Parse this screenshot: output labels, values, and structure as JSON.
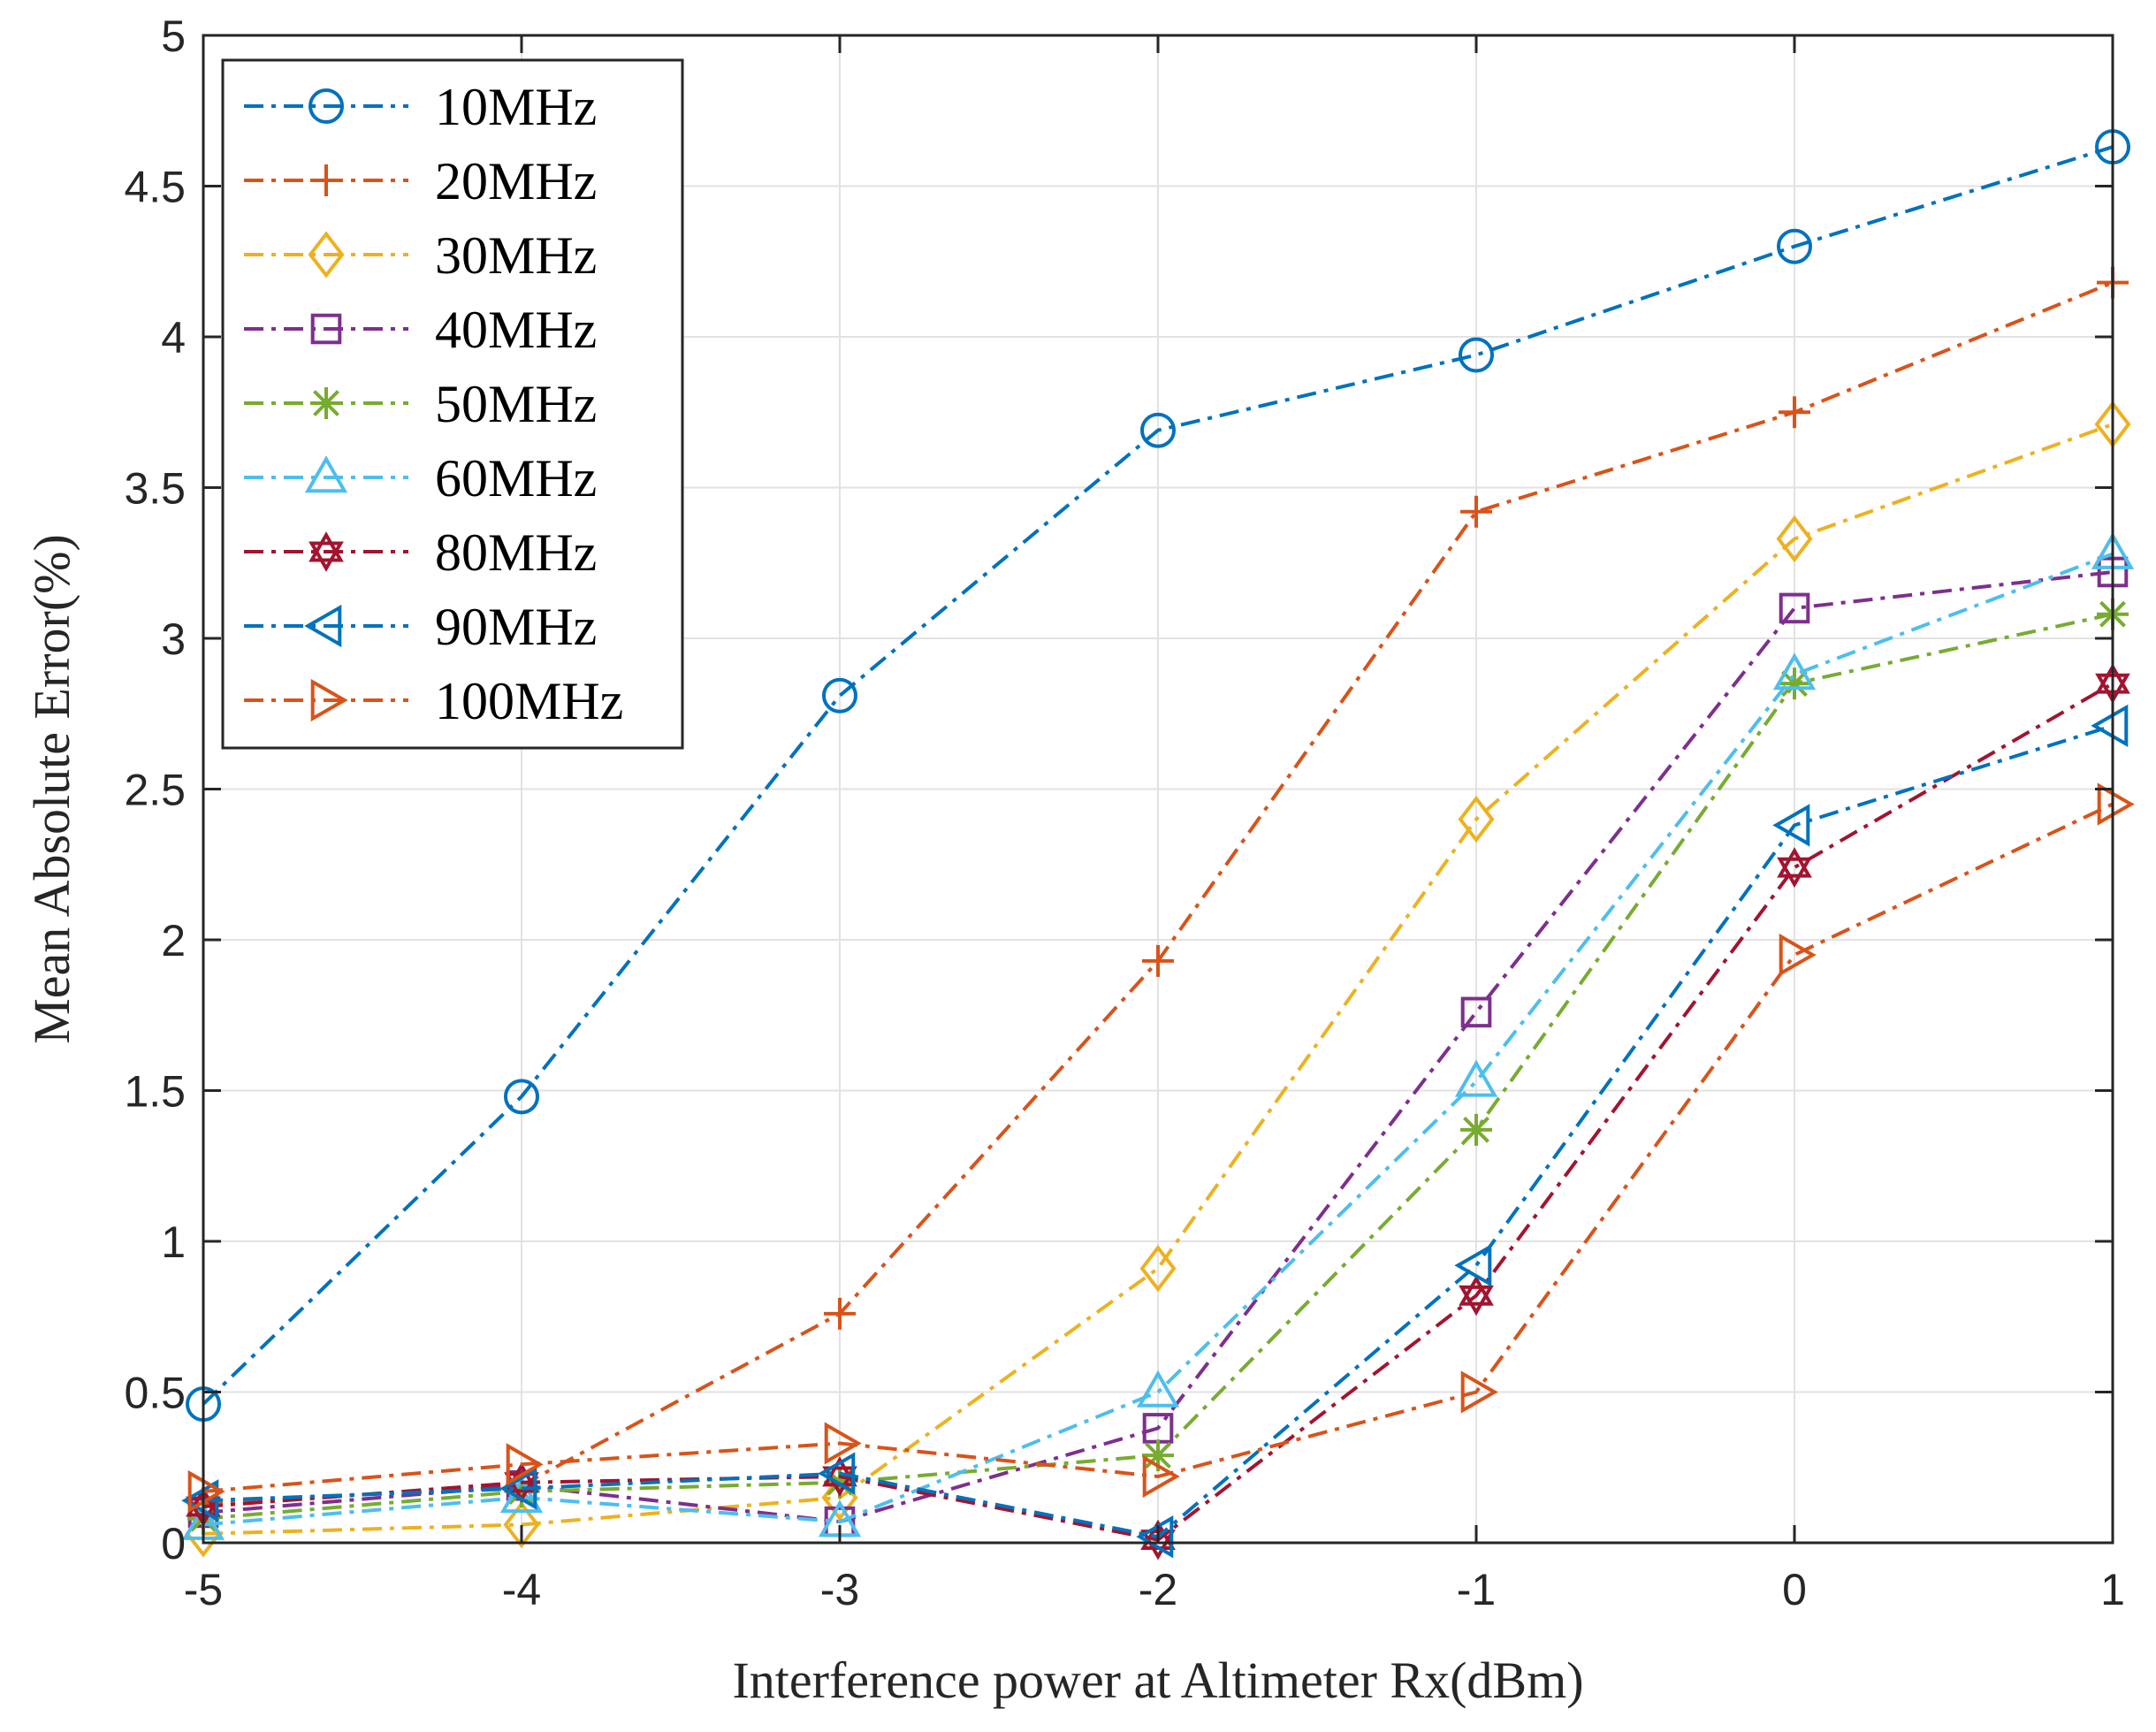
{
  "chart_data": {
    "type": "line",
    "title": "",
    "xlabel": "Interference power at Altimeter Rx(dBm)",
    "ylabel": "Mean Absolute Error(%)",
    "x": [
      -5,
      -4,
      -3,
      -2,
      -1,
      0,
      1
    ],
    "xlim": [
      -5,
      1
    ],
    "ylim": [
      0,
      5
    ],
    "xticks": [
      "-5",
      "-4",
      "-3",
      "-2",
      "-1",
      "0",
      "1"
    ],
    "yticks": [
      "0",
      "0.5",
      "1",
      "1.5",
      "2",
      "2.5",
      "3",
      "3.5",
      "4",
      "4.5",
      "5"
    ],
    "grid": true,
    "legend_position": "top-left",
    "series": [
      {
        "name": "10MHz",
        "color": "#0072BD",
        "marker": "circle",
        "values": [
          0.46,
          1.48,
          2.81,
          3.69,
          3.94,
          4.3,
          4.63
        ]
      },
      {
        "name": "20MHz",
        "color": "#D95319",
        "marker": "plus",
        "values": [
          0.13,
          0.19,
          0.76,
          1.93,
          3.42,
          3.75,
          4.18
        ]
      },
      {
        "name": "30MHz",
        "color": "#EDB120",
        "marker": "diamond",
        "values": [
          0.03,
          0.06,
          0.15,
          0.91,
          2.4,
          3.33,
          3.71
        ]
      },
      {
        "name": "40MHz",
        "color": "#7E2F8E",
        "marker": "square",
        "values": [
          0.1,
          0.19,
          0.07,
          0.38,
          1.76,
          3.1,
          3.22
        ]
      },
      {
        "name": "50MHz",
        "color": "#77AC30",
        "marker": "asterisk",
        "values": [
          0.08,
          0.17,
          0.2,
          0.29,
          1.37,
          2.85,
          3.08
        ]
      },
      {
        "name": "60MHz",
        "color": "#4DBEEE",
        "marker": "triangle-up",
        "values": [
          0.06,
          0.15,
          0.07,
          0.5,
          1.53,
          2.88,
          3.28
        ]
      },
      {
        "name": "80MHz",
        "color": "#A2142F",
        "marker": "hexagram",
        "values": [
          0.12,
          0.2,
          0.22,
          0.01,
          0.82,
          2.24,
          2.85
        ]
      },
      {
        "name": "90MHz",
        "color": "#0072BD",
        "marker": "triangle-left",
        "values": [
          0.14,
          0.18,
          0.23,
          0.02,
          0.92,
          2.38,
          2.71
        ]
      },
      {
        "name": "100MHz",
        "color": "#D95319",
        "marker": "triangle-right",
        "values": [
          0.17,
          0.26,
          0.33,
          0.22,
          0.5,
          1.95,
          2.45
        ]
      }
    ]
  }
}
